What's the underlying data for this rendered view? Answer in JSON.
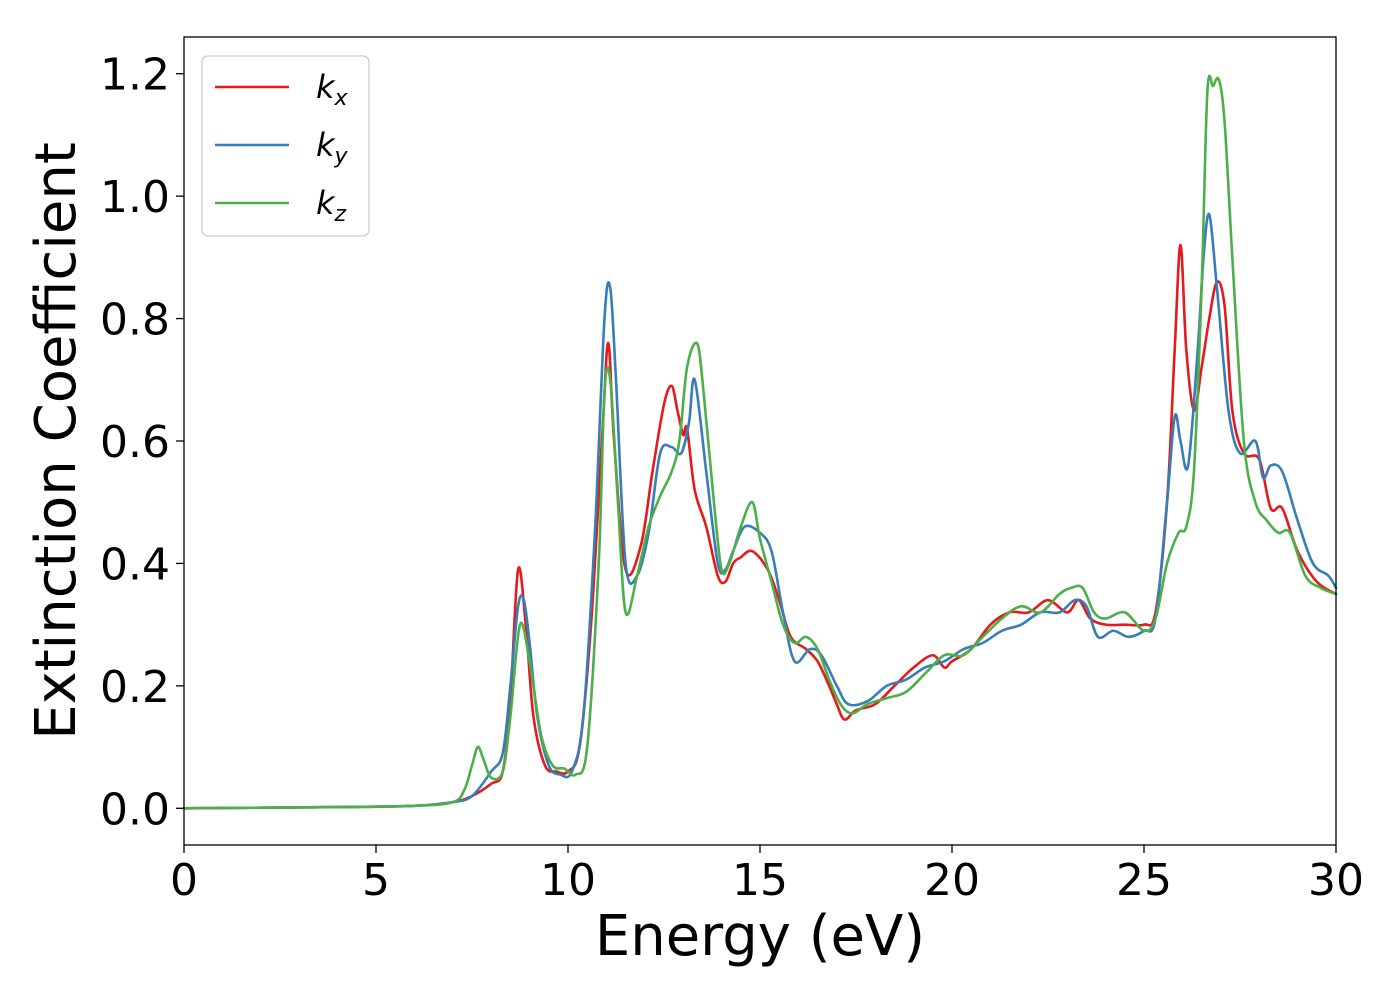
{
  "chart_data": {
    "type": "line",
    "xlabel": "Energy (eV)",
    "ylabel": "Extinction Coefficient",
    "xlim": [
      0,
      30
    ],
    "ylim": [
      -0.06,
      1.26
    ],
    "xticks": [
      0,
      5,
      10,
      15,
      20,
      25,
      30
    ],
    "xtick_labels": [
      "0",
      "5",
      "10",
      "15",
      "20",
      "25",
      "30"
    ],
    "yticks": [
      0.0,
      0.2,
      0.4,
      0.6,
      0.8,
      1.0,
      1.2
    ],
    "ytick_labels": [
      "0.0",
      "0.2",
      "0.4",
      "0.6",
      "0.8",
      "1.0",
      "1.2"
    ],
    "grid": false,
    "legend_position": "top-left",
    "series": [
      {
        "name": "k",
        "subscript": "x",
        "color": "#e41a1c",
        "x": [
          0,
          4,
          6,
          7,
          7.5,
          8,
          8.3,
          8.5,
          8.7,
          8.9,
          9.1,
          9.4,
          9.7,
          10.0,
          10.3,
          10.6,
          10.9,
          11.05,
          11.2,
          11.5,
          11.9,
          12.2,
          12.5,
          12.7,
          12.85,
          13.0,
          13.1,
          13.3,
          13.6,
          13.9,
          14.1,
          14.3,
          14.5,
          14.8,
          15.2,
          15.5,
          15.8,
          16.2,
          16.5,
          16.8,
          17.0,
          17.2,
          17.5,
          18.0,
          18.5,
          19.0,
          19.5,
          19.8,
          20.0,
          20.5,
          21.0,
          21.5,
          22.0,
          22.5,
          23.0,
          23.3,
          23.6,
          24.0,
          24.5,
          25.0,
          25.3,
          25.6,
          25.8,
          25.95,
          26.1,
          26.3,
          26.5,
          26.7,
          26.9,
          27.1,
          27.3,
          27.6,
          28.0,
          28.3,
          28.6,
          29.0,
          29.5,
          30.0
        ],
        "values": [
          0.0,
          0.002,
          0.004,
          0.01,
          0.02,
          0.04,
          0.06,
          0.18,
          0.39,
          0.3,
          0.15,
          0.07,
          0.06,
          0.06,
          0.1,
          0.3,
          0.62,
          0.76,
          0.6,
          0.39,
          0.43,
          0.55,
          0.66,
          0.69,
          0.65,
          0.61,
          0.62,
          0.52,
          0.46,
          0.38,
          0.37,
          0.4,
          0.41,
          0.42,
          0.39,
          0.34,
          0.28,
          0.26,
          0.24,
          0.2,
          0.17,
          0.145,
          0.16,
          0.17,
          0.2,
          0.23,
          0.25,
          0.23,
          0.24,
          0.26,
          0.3,
          0.32,
          0.32,
          0.34,
          0.32,
          0.34,
          0.31,
          0.3,
          0.3,
          0.3,
          0.32,
          0.5,
          0.75,
          0.92,
          0.75,
          0.65,
          0.72,
          0.8,
          0.86,
          0.82,
          0.65,
          0.58,
          0.57,
          0.49,
          0.49,
          0.42,
          0.37,
          0.35
        ]
      },
      {
        "name": "k",
        "subscript": "y",
        "color": "#377eb8",
        "x": [
          0,
          4,
          6,
          7,
          7.5,
          8,
          8.3,
          8.5,
          8.7,
          8.85,
          9.0,
          9.2,
          9.5,
          9.8,
          10.1,
          10.4,
          10.7,
          10.95,
          11.1,
          11.25,
          11.5,
          11.8,
          12.1,
          12.4,
          12.7,
          12.95,
          13.15,
          13.3,
          13.6,
          13.9,
          14.1,
          14.3,
          14.6,
          15.0,
          15.3,
          15.6,
          15.9,
          16.3,
          16.6,
          17.0,
          17.3,
          17.8,
          18.3,
          18.8,
          19.3,
          19.8,
          20.3,
          20.8,
          21.3,
          21.8,
          22.3,
          22.8,
          23.2,
          23.5,
          23.8,
          24.2,
          24.6,
          25.0,
          25.3,
          25.6,
          25.8,
          25.95,
          26.15,
          26.4,
          26.55,
          26.7,
          26.9,
          27.2,
          27.5,
          27.9,
          28.1,
          28.3,
          28.6,
          29.0,
          29.4,
          29.8,
          30.0
        ],
        "values": [
          0.0,
          0.002,
          0.004,
          0.01,
          0.02,
          0.06,
          0.09,
          0.2,
          0.33,
          0.34,
          0.27,
          0.15,
          0.07,
          0.055,
          0.06,
          0.15,
          0.45,
          0.8,
          0.85,
          0.7,
          0.4,
          0.38,
          0.45,
          0.58,
          0.59,
          0.58,
          0.63,
          0.7,
          0.55,
          0.4,
          0.39,
          0.42,
          0.46,
          0.45,
          0.42,
          0.32,
          0.24,
          0.26,
          0.25,
          0.2,
          0.17,
          0.175,
          0.2,
          0.21,
          0.23,
          0.24,
          0.26,
          0.27,
          0.29,
          0.3,
          0.32,
          0.32,
          0.34,
          0.33,
          0.28,
          0.29,
          0.28,
          0.29,
          0.31,
          0.5,
          0.64,
          0.6,
          0.56,
          0.75,
          0.9,
          0.97,
          0.85,
          0.65,
          0.58,
          0.6,
          0.54,
          0.56,
          0.55,
          0.47,
          0.4,
          0.38,
          0.36
        ]
      },
      {
        "name": "k",
        "subscript": "z",
        "color": "#4daf4a",
        "x": [
          0,
          4,
          6,
          7,
          7.3,
          7.5,
          7.65,
          7.8,
          8.0,
          8.3,
          8.5,
          8.75,
          9.0,
          9.3,
          9.6,
          9.9,
          10.2,
          10.5,
          10.8,
          10.95,
          11.1,
          11.3,
          11.5,
          11.8,
          12.1,
          12.4,
          12.7,
          12.9,
          13.1,
          13.35,
          13.5,
          13.8,
          14.0,
          14.2,
          14.5,
          14.8,
          15.0,
          15.3,
          15.6,
          15.9,
          16.2,
          16.5,
          16.8,
          17.1,
          17.4,
          17.8,
          18.3,
          18.8,
          19.3,
          19.8,
          20.3,
          20.8,
          21.3,
          21.8,
          22.3,
          22.8,
          23.1,
          23.4,
          23.7,
          24.0,
          24.5,
          25.0,
          25.3,
          25.6,
          25.9,
          26.1,
          26.3,
          26.5,
          26.65,
          26.8,
          26.95,
          27.1,
          27.3,
          27.6,
          27.9,
          28.2,
          28.5,
          28.8,
          29.2,
          29.6,
          30.0
        ],
        "values": [
          0.0,
          0.002,
          0.004,
          0.01,
          0.03,
          0.07,
          0.1,
          0.08,
          0.05,
          0.06,
          0.15,
          0.3,
          0.24,
          0.12,
          0.07,
          0.065,
          0.055,
          0.1,
          0.4,
          0.68,
          0.7,
          0.5,
          0.32,
          0.38,
          0.46,
          0.51,
          0.55,
          0.6,
          0.72,
          0.76,
          0.7,
          0.5,
          0.39,
          0.4,
          0.46,
          0.5,
          0.44,
          0.37,
          0.3,
          0.27,
          0.28,
          0.26,
          0.21,
          0.17,
          0.155,
          0.17,
          0.18,
          0.19,
          0.22,
          0.25,
          0.25,
          0.28,
          0.31,
          0.33,
          0.32,
          0.35,
          0.36,
          0.36,
          0.32,
          0.31,
          0.32,
          0.29,
          0.31,
          0.4,
          0.45,
          0.46,
          0.55,
          0.85,
          1.17,
          1.18,
          1.19,
          1.12,
          0.9,
          0.6,
          0.5,
          0.47,
          0.45,
          0.45,
          0.38,
          0.36,
          0.35
        ]
      }
    ]
  }
}
